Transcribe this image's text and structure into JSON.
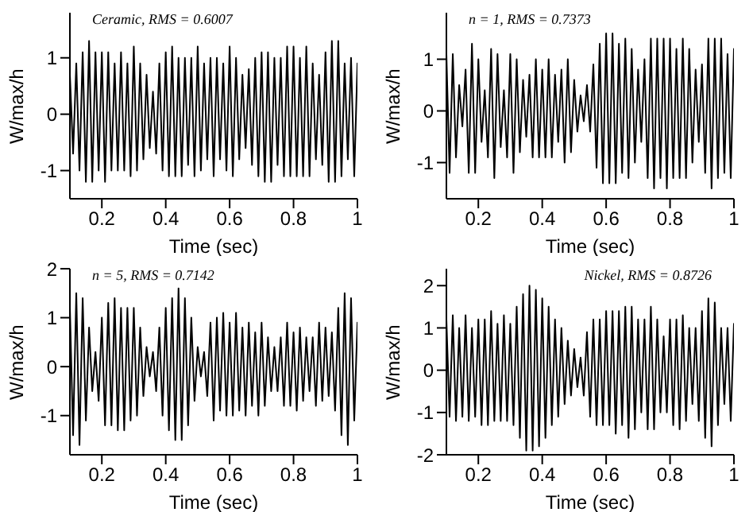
{
  "chart_data": [
    {
      "type": "line",
      "xlabel": "Time (sec)",
      "ylabel": "W/max/h",
      "annotations": [
        "Ceramic, RMS = 0.6007"
      ],
      "xlim": [
        0.1,
        1
      ],
      "xticks": [
        0.2,
        0.4,
        0.6,
        0.8,
        1
      ],
      "ylim": [
        -1.5,
        1.8
      ],
      "yticks": [
        -1,
        0,
        1
      ],
      "x": [
        0.1,
        0.11,
        0.12,
        0.13,
        0.14,
        0.15,
        0.16,
        0.17,
        0.18,
        0.19,
        0.2,
        0.21,
        0.22,
        0.23,
        0.24,
        0.25,
        0.26,
        0.27,
        0.28,
        0.29,
        0.3,
        0.31,
        0.32,
        0.33,
        0.34,
        0.35,
        0.36,
        0.37,
        0.38,
        0.39,
        0.4,
        0.41,
        0.42,
        0.43,
        0.44,
        0.45,
        0.46,
        0.47,
        0.48,
        0.49,
        0.5,
        0.51,
        0.52,
        0.53,
        0.54,
        0.55,
        0.56,
        0.57,
        0.58,
        0.59,
        0.6,
        0.61,
        0.62,
        0.63,
        0.64,
        0.65,
        0.66,
        0.67,
        0.68,
        0.69,
        0.7,
        0.71,
        0.72,
        0.73,
        0.74,
        0.75,
        0.76,
        0.77,
        0.78,
        0.79,
        0.8,
        0.81,
        0.82,
        0.83,
        0.84,
        0.85,
        0.86,
        0.87,
        0.88,
        0.89,
        0.9,
        0.91,
        0.92,
        0.93,
        0.94,
        0.95,
        0.96,
        0.97,
        0.98,
        0.99,
        1
      ],
      "series": [
        {
          "color": "#000000",
          "values": [
            0.7,
            -0.7,
            0.9,
            -1.0,
            1.1,
            -1.2,
            1.3,
            -1.2,
            1.1,
            -1.0,
            1.1,
            -1.2,
            1.1,
            -1.0,
            0.9,
            -1.0,
            1.1,
            -1.0,
            0.9,
            -1.1,
            1.2,
            -1.0,
            0.9,
            -0.8,
            0.7,
            -0.6,
            0.4,
            -0.7,
            0.9,
            -1.0,
            1.1,
            -1.1,
            1.2,
            -1.1,
            1.0,
            -1.1,
            1.0,
            -0.9,
            1.0,
            -1.1,
            1.2,
            -1.0,
            0.9,
            -0.8,
            1.0,
            -1.1,
            1.0,
            -0.8,
            0.9,
            -1.0,
            1.2,
            -1.1,
            1.0,
            -0.8,
            0.7,
            -0.6,
            0.8,
            -0.9,
            1.0,
            -1.1,
            1.1,
            -1.2,
            1.1,
            -1.2,
            1.0,
            -0.9,
            1.0,
            -1.1,
            1.2,
            -1.1,
            1.2,
            -1.1,
            1.0,
            -1.1,
            1.2,
            -1.1,
            0.9,
            -0.8,
            0.7,
            -0.9,
            1.1,
            -1.2,
            1.3,
            -1.2,
            1.3,
            -1.1,
            0.9,
            -0.8,
            1.0,
            -1.1,
            0.9
          ]
        }
      ]
    },
    {
      "type": "line",
      "xlabel": "Time (sec)",
      "ylabel": "W/max/h",
      "annotations": [
        "n = 1, RMS = 0.7373"
      ],
      "xlim": [
        0.1,
        1
      ],
      "xticks": [
        0.2,
        0.4,
        0.6,
        0.8,
        1
      ],
      "ylim": [
        -1.7,
        1.9
      ],
      "yticks": [
        -1,
        0,
        1
      ],
      "x": [
        0.1,
        0.11,
        0.12,
        0.13,
        0.14,
        0.15,
        0.16,
        0.17,
        0.18,
        0.19,
        0.2,
        0.21,
        0.22,
        0.23,
        0.24,
        0.25,
        0.26,
        0.27,
        0.28,
        0.29,
        0.3,
        0.31,
        0.32,
        0.33,
        0.34,
        0.35,
        0.36,
        0.37,
        0.38,
        0.39,
        0.4,
        0.41,
        0.42,
        0.43,
        0.44,
        0.45,
        0.46,
        0.47,
        0.48,
        0.49,
        0.5,
        0.51,
        0.52,
        0.53,
        0.54,
        0.55,
        0.56,
        0.57,
        0.58,
        0.59,
        0.6,
        0.61,
        0.62,
        0.63,
        0.64,
        0.65,
        0.66,
        0.67,
        0.68,
        0.69,
        0.7,
        0.71,
        0.72,
        0.73,
        0.74,
        0.75,
        0.76,
        0.77,
        0.78,
        0.79,
        0.8,
        0.81,
        0.82,
        0.83,
        0.84,
        0.85,
        0.86,
        0.87,
        0.88,
        0.89,
        0.9,
        0.91,
        0.92,
        0.93,
        0.94,
        0.95,
        0.96,
        0.97,
        0.98,
        0.99,
        1
      ],
      "series": [
        {
          "color": "#000000",
          "values": [
            1.1,
            -1.2,
            1.1,
            -0.9,
            0.5,
            -0.3,
            0.8,
            -1.2,
            1.3,
            -1.2,
            1.0,
            -0.6,
            0.4,
            -0.9,
            1.2,
            -1.3,
            1.1,
            -0.7,
            0.4,
            -0.9,
            1.1,
            -1.2,
            1.0,
            -0.8,
            0.6,
            -0.5,
            0.7,
            -0.9,
            1.0,
            -0.9,
            0.8,
            -0.9,
            1.0,
            -0.9,
            0.7,
            -0.6,
            0.8,
            -1.0,
            1.0,
            -0.8,
            0.6,
            -0.4,
            0.3,
            -0.2,
            0.5,
            -0.4,
            0.9,
            -1.1,
            1.3,
            -1.4,
            1.5,
            -1.4,
            1.5,
            -1.4,
            1.3,
            -1.2,
            1.4,
            -1.3,
            1.2,
            -1.0,
            0.8,
            -0.6,
            1.0,
            -1.3,
            1.4,
            -1.5,
            1.4,
            -1.3,
            1.4,
            -1.5,
            1.4,
            -1.3,
            1.2,
            -1.3,
            1.4,
            -1.3,
            1.2,
            -1.0,
            0.8,
            -0.6,
            0.9,
            -1.2,
            1.4,
            -1.5,
            1.4,
            -1.3,
            1.4,
            -1.2,
            1.1,
            -1.3,
            1.2
          ]
        }
      ]
    },
    {
      "type": "line",
      "xlabel": "Time (sec)",
      "ylabel": "W/max/h",
      "annotations": [
        "n = 5, RMS = 0.7142"
      ],
      "xlim": [
        0.1,
        1
      ],
      "xticks": [
        0.2,
        0.4,
        0.6,
        0.8,
        1
      ],
      "ylim": [
        -1.8,
        2
      ],
      "yticks": [
        -1,
        0,
        1,
        2
      ],
      "x": [
        0.1,
        0.11,
        0.12,
        0.13,
        0.14,
        0.15,
        0.16,
        0.17,
        0.18,
        0.19,
        0.2,
        0.21,
        0.22,
        0.23,
        0.24,
        0.25,
        0.26,
        0.27,
        0.28,
        0.29,
        0.3,
        0.31,
        0.32,
        0.33,
        0.34,
        0.35,
        0.36,
        0.37,
        0.38,
        0.39,
        0.4,
        0.41,
        0.42,
        0.43,
        0.44,
        0.45,
        0.46,
        0.47,
        0.48,
        0.49,
        0.5,
        0.51,
        0.52,
        0.53,
        0.54,
        0.55,
        0.56,
        0.57,
        0.58,
        0.59,
        0.6,
        0.61,
        0.62,
        0.63,
        0.64,
        0.65,
        0.66,
        0.67,
        0.68,
        0.69,
        0.7,
        0.71,
        0.72,
        0.73,
        0.74,
        0.75,
        0.76,
        0.77,
        0.78,
        0.79,
        0.8,
        0.81,
        0.82,
        0.83,
        0.84,
        0.85,
        0.86,
        0.87,
        0.88,
        0.89,
        0.9,
        0.91,
        0.92,
        0.93,
        0.94,
        0.95,
        0.96,
        0.97,
        0.98,
        0.99,
        1
      ],
      "series": [
        {
          "color": "#000000",
          "values": [
            1.2,
            -1.4,
            1.5,
            -1.6,
            1.4,
            -1.1,
            0.8,
            -0.5,
            0.3,
            -0.7,
            1.0,
            -1.2,
            1.3,
            -1.2,
            1.4,
            -1.3,
            1.2,
            -1.3,
            1.2,
            -1.1,
            1.2,
            -1.0,
            0.8,
            -0.6,
            0.4,
            -0.2,
            0.3,
            -0.5,
            0.8,
            -1.0,
            1.2,
            -1.3,
            1.4,
            -1.5,
            1.6,
            -1.5,
            1.4,
            -1.2,
            1.0,
            -0.7,
            0.4,
            -0.2,
            0.3,
            -0.6,
            0.9,
            -1.1,
            1.0,
            -0.9,
            1.1,
            -1.0,
            0.9,
            -1.0,
            1.1,
            -0.9,
            0.8,
            -1.0,
            0.9,
            -0.8,
            0.7,
            -1.0,
            0.9,
            -0.8,
            0.6,
            -0.5,
            0.4,
            -0.5,
            0.6,
            -0.8,
            0.9,
            -0.8,
            0.7,
            -0.9,
            0.8,
            -0.7,
            0.6,
            -0.5,
            0.6,
            -0.8,
            0.9,
            -0.7,
            0.8,
            -0.6,
            0.7,
            -0.9,
            1.2,
            -1.4,
            1.5,
            -1.6,
            1.4,
            -1.1,
            0.9
          ]
        }
      ]
    },
    {
      "type": "line",
      "xlabel": "Time (sec)",
      "ylabel": "W/max/h",
      "annotations": [
        "Nickel, RMS = 0.8726"
      ],
      "xlim": [
        0.1,
        1
      ],
      "xticks": [
        0.2,
        0.4,
        0.6,
        0.8,
        1
      ],
      "ylim": [
        -2,
        2.4
      ],
      "yticks": [
        -2,
        -1,
        0,
        1,
        2
      ],
      "x": [
        0.1,
        0.11,
        0.12,
        0.13,
        0.14,
        0.15,
        0.16,
        0.17,
        0.18,
        0.19,
        0.2,
        0.21,
        0.22,
        0.23,
        0.24,
        0.25,
        0.26,
        0.27,
        0.28,
        0.29,
        0.3,
        0.31,
        0.32,
        0.33,
        0.34,
        0.35,
        0.36,
        0.37,
        0.38,
        0.39,
        0.4,
        0.41,
        0.42,
        0.43,
        0.44,
        0.45,
        0.46,
        0.47,
        0.48,
        0.49,
        0.5,
        0.51,
        0.52,
        0.53,
        0.54,
        0.55,
        0.56,
        0.57,
        0.58,
        0.59,
        0.6,
        0.61,
        0.62,
        0.63,
        0.64,
        0.65,
        0.66,
        0.67,
        0.68,
        0.69,
        0.7,
        0.71,
        0.72,
        0.73,
        0.74,
        0.75,
        0.76,
        0.77,
        0.78,
        0.79,
        0.8,
        0.81,
        0.82,
        0.83,
        0.84,
        0.85,
        0.86,
        0.87,
        0.88,
        0.89,
        0.9,
        0.91,
        0.92,
        0.93,
        0.94,
        0.95,
        0.96,
        0.97,
        0.98,
        0.99,
        1
      ],
      "series": [
        {
          "color": "#000000",
          "values": [
            1.2,
            -1.1,
            1.3,
            -1.2,
            1.0,
            -1.1,
            1.3,
            -1.2,
            1.0,
            -1.1,
            1.2,
            -1.3,
            1.2,
            -1.3,
            1.4,
            -1.2,
            1.1,
            -1.2,
            1.3,
            -1.2,
            1.1,
            -1.3,
            1.5,
            -1.6,
            1.8,
            -1.9,
            2.0,
            -1.9,
            1.9,
            -1.8,
            1.7,
            -1.6,
            1.5,
            -1.3,
            1.2,
            -1.1,
            1.0,
            -0.8,
            0.7,
            -0.6,
            0.5,
            -0.4,
            0.3,
            -0.6,
            0.9,
            -1.1,
            1.2,
            -1.3,
            1.2,
            -1.3,
            1.4,
            -1.3,
            1.4,
            -1.5,
            1.4,
            -1.3,
            1.5,
            -1.6,
            1.5,
            -1.4,
            1.2,
            -1.0,
            1.2,
            -1.4,
            1.5,
            -1.4,
            1.2,
            -1.0,
            0.8,
            -1.0,
            1.2,
            -1.3,
            1.2,
            -1.4,
            1.3,
            -1.2,
            1.0,
            -0.8,
            1.0,
            -1.2,
            1.4,
            -1.6,
            1.7,
            -1.8,
            1.6,
            -1.3,
            1.0,
            -0.8,
            1.0,
            -1.2,
            1.1
          ]
        }
      ]
    }
  ]
}
